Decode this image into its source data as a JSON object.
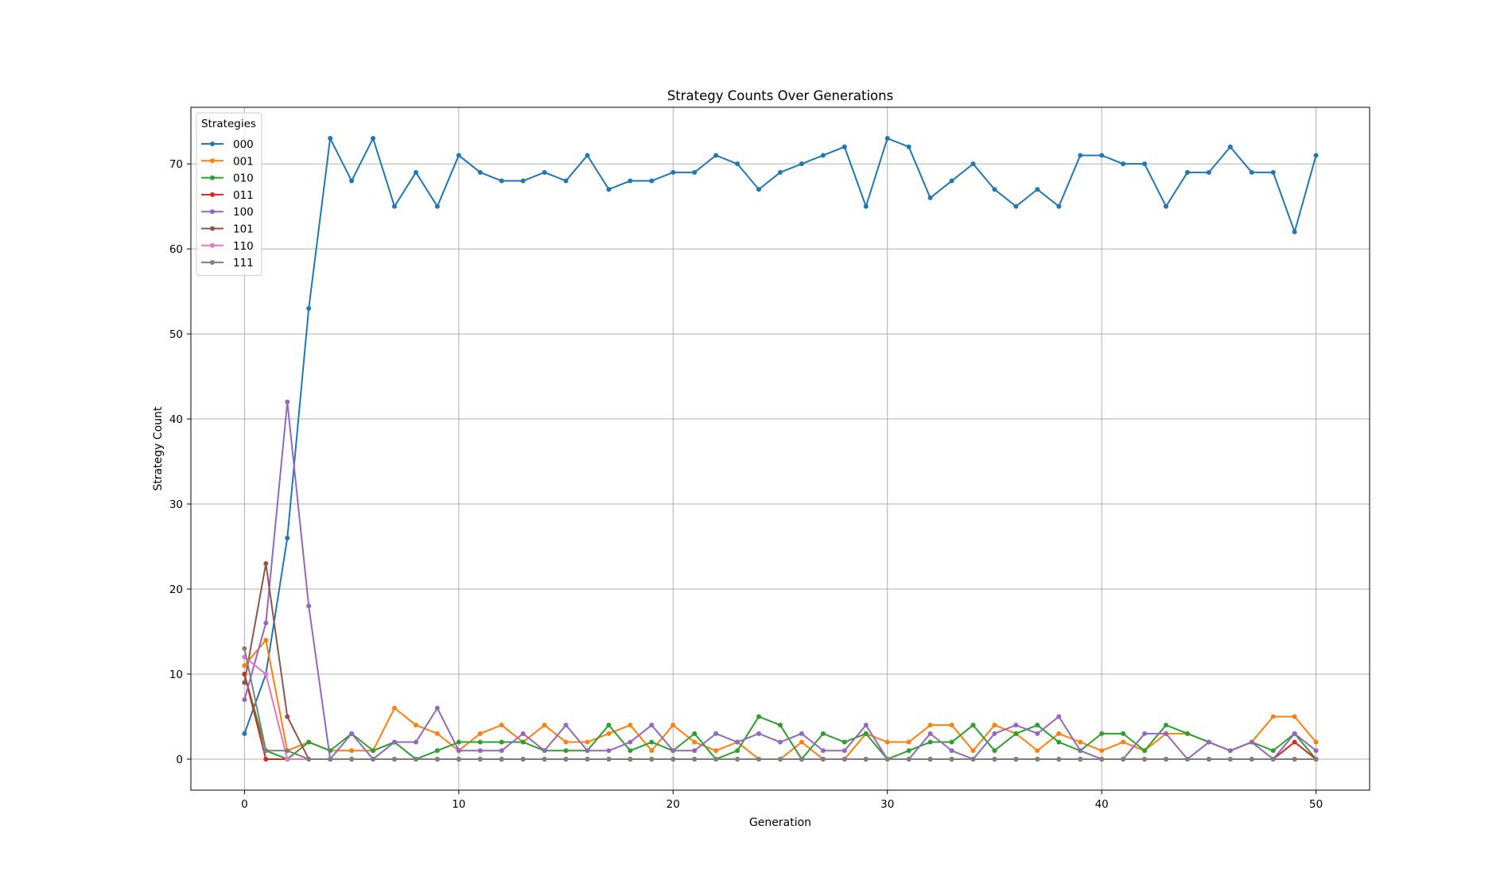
{
  "chart_data": {
    "type": "line",
    "title": "Strategy Counts Over Generations",
    "xlabel": "Generation",
    "ylabel": "Strategy Count",
    "xlim": [
      -2.5,
      52.5
    ],
    "ylim": [
      -3.65,
      76.65
    ],
    "xticks": [
      0,
      10,
      20,
      30,
      40,
      50
    ],
    "yticks": [
      0,
      10,
      20,
      30,
      40,
      50,
      60,
      70
    ],
    "grid": true,
    "legend": {
      "title": "Strategies",
      "position": "top-left"
    },
    "x": [
      0,
      1,
      2,
      3,
      4,
      5,
      6,
      7,
      8,
      9,
      10,
      11,
      12,
      13,
      14,
      15,
      16,
      17,
      18,
      19,
      20,
      21,
      22,
      23,
      24,
      25,
      26,
      27,
      28,
      29,
      30,
      31,
      32,
      33,
      34,
      35,
      36,
      37,
      38,
      39,
      40,
      41,
      42,
      43,
      44,
      45,
      46,
      47,
      48,
      49,
      50
    ],
    "series": [
      {
        "name": "000",
        "color": "#1f77b4",
        "values": [
          3,
          10,
          26,
          53,
          73,
          68,
          73,
          65,
          69,
          65,
          71,
          69,
          68,
          68,
          69,
          68,
          71,
          67,
          68,
          68,
          69,
          69,
          71,
          70,
          67,
          69,
          70,
          71,
          72,
          65,
          73,
          72,
          66,
          68,
          70,
          67,
          65,
          67,
          65,
          71,
          71,
          70,
          70,
          65,
          69,
          69,
          72,
          69,
          69,
          62,
          71
        ]
      },
      {
        "name": "001",
        "color": "#ff7f0e",
        "values": [
          11,
          14,
          1,
          2,
          1,
          1,
          1,
          6,
          4,
          3,
          1,
          3,
          4,
          2,
          4,
          2,
          2,
          3,
          4,
          1,
          4,
          2,
          1,
          2,
          0,
          0,
          2,
          0,
          0,
          3,
          2,
          2,
          4,
          4,
          1,
          4,
          3,
          1,
          3,
          2,
          1,
          2,
          1,
          3,
          3,
          2,
          1,
          2,
          5,
          5,
          2
        ]
      },
      {
        "name": "010",
        "color": "#2ca02c",
        "values": [
          10,
          1,
          0,
          2,
          1,
          3,
          1,
          2,
          0,
          1,
          2,
          2,
          2,
          2,
          1,
          1,
          1,
          4,
          1,
          2,
          1,
          3,
          0,
          1,
          5,
          4,
          0,
          3,
          2,
          3,
          0,
          1,
          2,
          2,
          4,
          1,
          3,
          4,
          2,
          1,
          3,
          3,
          1,
          4,
          3,
          2,
          1,
          2,
          1,
          3,
          0
        ]
      },
      {
        "name": "011",
        "color": "#d62728",
        "values": [
          10,
          0,
          0,
          0,
          0,
          0,
          0,
          0,
          0,
          0,
          0,
          0,
          0,
          0,
          0,
          0,
          0,
          0,
          0,
          0,
          0,
          0,
          0,
          0,
          0,
          0,
          0,
          0,
          0,
          0,
          0,
          0,
          0,
          0,
          0,
          0,
          0,
          0,
          0,
          0,
          0,
          0,
          0,
          0,
          0,
          0,
          0,
          0,
          0,
          2,
          0
        ]
      },
      {
        "name": "100",
        "color": "#9467bd",
        "values": [
          7,
          16,
          42,
          18,
          0,
          3,
          0,
          2,
          2,
          6,
          1,
          1,
          1,
          3,
          1,
          4,
          1,
          1,
          2,
          4,
          1,
          1,
          3,
          2,
          3,
          2,
          3,
          1,
          1,
          4,
          0,
          0,
          3,
          1,
          0,
          3,
          4,
          3,
          5,
          1,
          0,
          0,
          3,
          3,
          0,
          2,
          1,
          2,
          0,
          3,
          1
        ]
      },
      {
        "name": "101",
        "color": "#8c564b",
        "values": [
          9,
          23,
          5,
          0,
          0,
          0,
          0,
          0,
          0,
          0,
          0,
          0,
          0,
          0,
          0,
          0,
          0,
          0,
          0,
          0,
          0,
          0,
          0,
          0,
          0,
          0,
          0,
          0,
          0,
          0,
          0,
          0,
          0,
          0,
          0,
          0,
          0,
          0,
          0,
          0,
          0,
          0,
          0,
          0,
          0,
          0,
          0,
          0,
          0,
          0,
          0
        ]
      },
      {
        "name": "110",
        "color": "#e377c2",
        "values": [
          12,
          10,
          0,
          0,
          0,
          0,
          0,
          0,
          0,
          0,
          0,
          0,
          0,
          0,
          0,
          0,
          0,
          0,
          0,
          0,
          0,
          0,
          0,
          0,
          0,
          0,
          0,
          0,
          0,
          0,
          0,
          0,
          0,
          0,
          0,
          0,
          0,
          0,
          0,
          0,
          0,
          0,
          0,
          0,
          0,
          0,
          0,
          0,
          0,
          0,
          0
        ]
      },
      {
        "name": "111",
        "color": "#7f7f7f",
        "values": [
          13,
          1,
          1,
          0,
          0,
          0,
          0,
          0,
          0,
          0,
          0,
          0,
          0,
          0,
          0,
          0,
          0,
          0,
          0,
          0,
          0,
          0,
          0,
          0,
          0,
          0,
          0,
          0,
          0,
          0,
          0,
          0,
          0,
          0,
          0,
          0,
          0,
          0,
          0,
          0,
          0,
          0,
          0,
          0,
          0,
          0,
          0,
          0,
          0,
          0,
          0
        ]
      }
    ]
  }
}
